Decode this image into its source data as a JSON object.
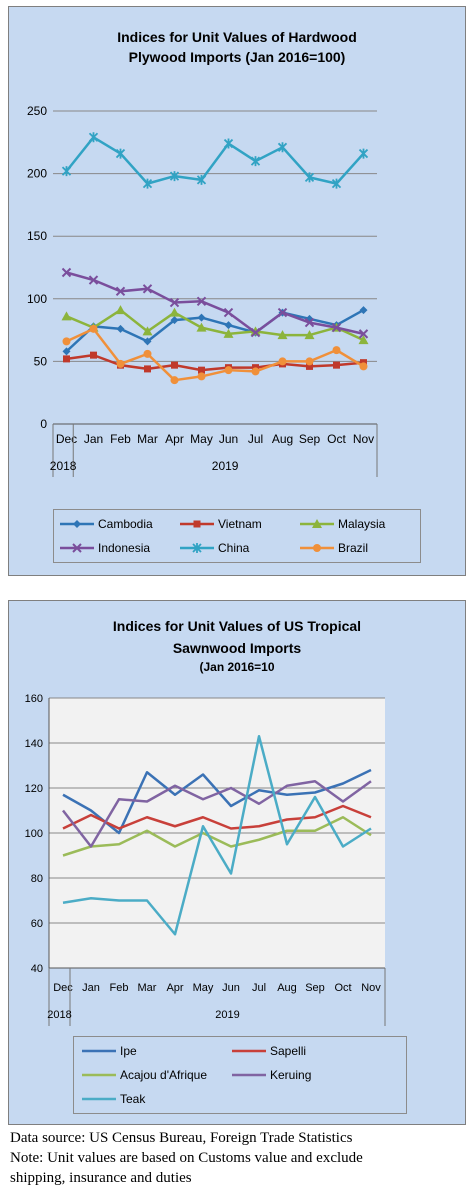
{
  "chart_data": [
    {
      "type": "line",
      "title_lines": [
        "Indices for Unit Values of Hardwood",
        "Plywood Imports (Jan 2016=100)"
      ],
      "categories": [
        "Dec",
        "Jan",
        "Feb",
        "Mar",
        "Apr",
        "May",
        "Jun",
        "Jul",
        "Aug",
        "Sep",
        "Oct",
        "Nov"
      ],
      "year_labels": [
        "2018",
        "2019"
      ],
      "ylim": [
        0,
        250
      ],
      "yticks": [
        0,
        50,
        100,
        150,
        200,
        250
      ],
      "grid": true,
      "legend": "bottom",
      "series": [
        {
          "name": "Cambodia",
          "color": "#2e75b6",
          "marker": "diamond",
          "values": [
            58,
            78,
            76,
            66,
            83,
            85,
            79,
            73,
            89,
            84,
            79,
            91
          ]
        },
        {
          "name": "Vietnam",
          "color": "#c0392b",
          "marker": "square",
          "values": [
            52,
            55,
            47,
            44,
            47,
            43,
            45,
            45,
            48,
            46,
            47,
            49
          ]
        },
        {
          "name": "Malaysia",
          "color": "#8cb43c",
          "marker": "triangle",
          "values": [
            86,
            77,
            91,
            74,
            89,
            77,
            72,
            74,
            71,
            71,
            77,
            67
          ]
        },
        {
          "name": "Indonesia",
          "color": "#7a4e9c",
          "marker": "x",
          "values": [
            121,
            115,
            106,
            108,
            97,
            98,
            89,
            73,
            89,
            81,
            77,
            72
          ]
        },
        {
          "name": "China",
          "color": "#31a3c4",
          "marker": "star",
          "values": [
            202,
            229,
            216,
            192,
            198,
            195,
            224,
            210,
            221,
            197,
            192,
            216
          ]
        },
        {
          "name": "Brazil",
          "color": "#f0903a",
          "marker": "circle",
          "values": [
            66,
            76,
            48,
            56,
            35,
            38,
            43,
            42,
            50,
            50,
            59,
            46
          ]
        }
      ]
    },
    {
      "type": "line",
      "title_lines": [
        "Indices for Unit Values of US Tropical",
        "Sawnwood Imports"
      ],
      "subtitle": "(Jan 2016=10",
      "categories": [
        "Dec",
        "Jan",
        "Feb",
        "Mar",
        "Apr",
        "May",
        "Jun",
        "Jul",
        "Aug",
        "Sep",
        "Oct",
        "Nov"
      ],
      "year_labels": [
        "2018",
        "2019"
      ],
      "ylim": [
        40,
        160
      ],
      "yticks": [
        40,
        60,
        80,
        100,
        120,
        140,
        160
      ],
      "grid": true,
      "legend": "bottom",
      "series": [
        {
          "name": "Ipe",
          "color": "#3b72b5",
          "values": [
            117,
            110,
            100,
            127,
            117,
            126,
            112,
            119,
            117,
            118,
            122,
            128
          ]
        },
        {
          "name": "Sapelli",
          "color": "#c8403a",
          "values": [
            102,
            108,
            102,
            107,
            103,
            107,
            102,
            103,
            106,
            107,
            112,
            107
          ]
        },
        {
          "name": "Acajou d'Afrique",
          "color": "#9bbb59",
          "values": [
            90,
            94,
            95,
            101,
            94,
            100,
            94,
            97,
            101,
            101,
            107,
            99
          ]
        },
        {
          "name": "Keruing",
          "color": "#8064a2",
          "values": [
            110,
            94,
            115,
            114,
            121,
            115,
            120,
            113,
            121,
            123,
            114,
            123
          ]
        },
        {
          "name": "Teak",
          "color": "#4bacc6",
          "values": [
            69,
            71,
            70,
            70,
            55,
            103,
            82,
            143,
            95,
            116,
            94,
            102
          ]
        }
      ]
    }
  ],
  "footnote": {
    "line1": "Data source: US Census Bureau, Foreign Trade Statistics",
    "line2": "Note: Unit values are based on Customs value and exclude",
    "line3": "shipping, insurance and duties"
  }
}
